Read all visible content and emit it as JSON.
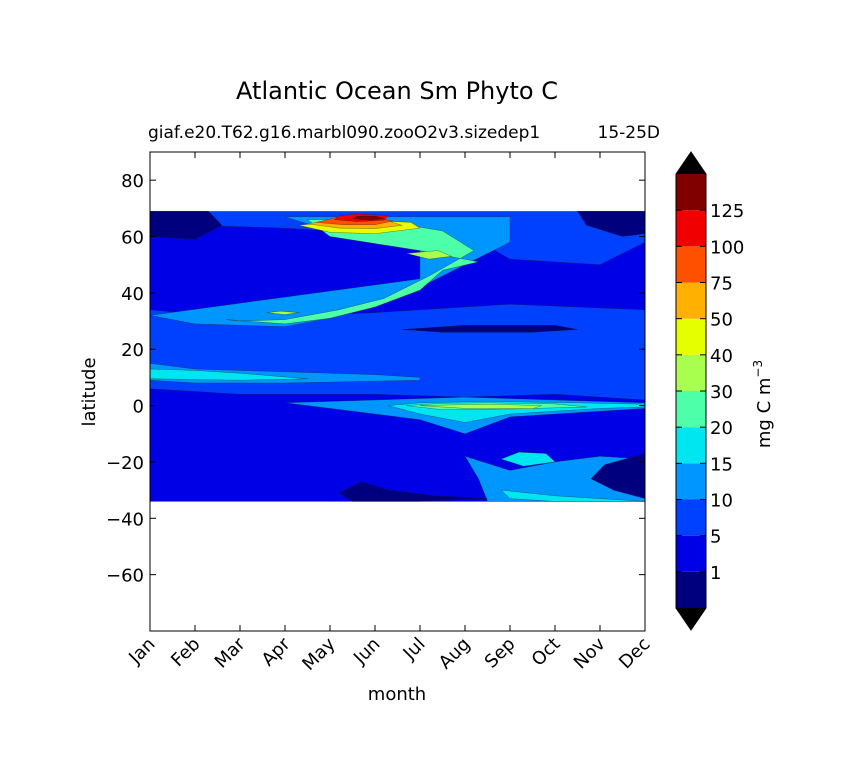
{
  "chart_data": {
    "type": "heatmap",
    "title": "Atlantic Ocean Sm Phyto C",
    "subtitle_left": "giaf.e20.T62.g16.marbl090.zooO2v3.sizedep1",
    "subtitle_right": "15-25D",
    "xlabel": "month",
    "ylabel": "latitude",
    "x_categories": [
      "Jan",
      "Feb",
      "Mar",
      "Apr",
      "May",
      "Jun",
      "Jul",
      "Aug",
      "Sep",
      "Oct",
      "Nov",
      "Dec"
    ],
    "ylim": [
      -80,
      90
    ],
    "yticks": [
      80,
      60,
      40,
      20,
      0,
      -20,
      -40,
      -60
    ],
    "ytick_labels": [
      "80",
      "60",
      "40",
      "20",
      "0",
      "−20",
      "−40",
      "−60"
    ],
    "data_lat_range": [
      -34,
      69
    ],
    "colorbar": {
      "label": "mg C m",
      "label_superscript": "−3",
      "levels": [
        0,
        1,
        5,
        10,
        15,
        20,
        30,
        40,
        50,
        75,
        100,
        125,
        150
      ],
      "tick_labels": [
        "1",
        "5",
        "10",
        "15",
        "20",
        "30",
        "40",
        "50",
        "75",
        "100",
        "125"
      ],
      "colors": [
        "#00007f",
        "#0000e6",
        "#0040ff",
        "#0096ff",
        "#00e6f0",
        "#4dffa8",
        "#a8ff4d",
        "#e6ff00",
        "#ffb000",
        "#ff5000",
        "#f00000",
        "#800000"
      ],
      "extend": "both",
      "under_color": "#000000",
      "over_color": "#000000"
    },
    "regions": [
      {
        "level": 1,
        "polygon": [
          [
            0,
            34
          ],
          [
            0,
            61
          ],
          [
            1,
            64
          ],
          [
            3,
            63
          ],
          [
            5,
            61
          ],
          [
            7,
            61
          ],
          [
            8,
            52
          ],
          [
            10,
            50
          ],
          [
            11,
            58
          ],
          [
            11,
            34
          ],
          [
            8,
            36
          ],
          [
            5,
            33
          ],
          [
            2,
            31
          ]
        ]
      },
      {
        "level": 1,
        "polygon": [
          [
            0,
            6
          ],
          [
            2,
            4
          ],
          [
            5,
            4
          ],
          [
            7,
            3
          ],
          [
            9,
            4
          ],
          [
            11,
            2
          ],
          [
            11,
            -34
          ],
          [
            0,
            -34
          ]
        ]
      },
      {
        "level": 3,
        "polygon": [
          [
            0,
            32
          ],
          [
            1,
            29
          ],
          [
            3,
            28
          ],
          [
            4,
            31
          ],
          [
            5,
            36
          ],
          [
            6,
            42
          ],
          [
            7,
            50
          ],
          [
            8,
            58
          ],
          [
            8,
            67
          ],
          [
            3,
            67
          ],
          [
            4,
            62
          ],
          [
            6,
            55
          ],
          [
            6,
            45
          ]
        ]
      },
      {
        "level": 3,
        "polygon": [
          [
            0,
            15
          ],
          [
            1,
            13
          ],
          [
            3,
            12
          ],
          [
            5,
            11
          ],
          [
            6,
            10
          ],
          [
            6,
            9
          ],
          [
            3,
            8
          ],
          [
            1,
            8
          ],
          [
            0,
            9
          ]
        ]
      },
      {
        "level": 3,
        "polygon": [
          [
            3,
            1
          ],
          [
            4.5,
            -2
          ],
          [
            6,
            -5
          ],
          [
            7,
            -10
          ],
          [
            8,
            -4
          ],
          [
            10,
            -2
          ],
          [
            11,
            -1
          ],
          [
            11,
            1
          ],
          [
            9,
            2
          ],
          [
            7,
            3
          ],
          [
            5,
            2
          ]
        ]
      },
      {
        "level": 3,
        "polygon": [
          [
            7,
            -18
          ],
          [
            8,
            -23
          ],
          [
            9,
            -20
          ],
          [
            10,
            -18
          ],
          [
            11,
            -19
          ],
          [
            11,
            -34
          ],
          [
            7.5,
            -34
          ],
          [
            7.3,
            -26
          ]
        ]
      },
      {
        "level": 4,
        "polygon": [
          [
            0,
            13
          ],
          [
            1,
            12.5
          ],
          [
            2,
            11.5
          ],
          [
            3.5,
            9.5
          ],
          [
            2,
            9
          ],
          [
            0,
            9.5
          ]
        ]
      },
      {
        "level": 4,
        "polygon": [
          [
            5.3,
            0
          ],
          [
            6,
            -3
          ],
          [
            7,
            -6
          ],
          [
            8,
            -3
          ],
          [
            10,
            -1
          ],
          [
            11,
            -0.5
          ],
          [
            11,
            0.5
          ],
          [
            9.5,
            1
          ],
          [
            7.5,
            1.5
          ],
          [
            6,
            1
          ]
        ]
      },
      {
        "level": 4,
        "polygon": [
          [
            7.8,
            -19
          ],
          [
            8.3,
            -21.5
          ],
          [
            9,
            -20
          ],
          [
            8.8,
            -17
          ],
          [
            8.2,
            -16.5
          ]
        ]
      },
      {
        "level": 4,
        "polygon": [
          [
            7.8,
            -30
          ],
          [
            9,
            -32
          ],
          [
            10,
            -33
          ],
          [
            11,
            -34
          ],
          [
            9,
            -34
          ],
          [
            8,
            -33
          ]
        ]
      },
      {
        "level": 5,
        "polygon": [
          [
            1.7,
            30.5
          ],
          [
            3,
            29
          ],
          [
            4,
            31
          ],
          [
            5,
            35
          ],
          [
            6,
            41
          ],
          [
            6.5,
            48
          ],
          [
            7.3,
            51
          ],
          [
            6,
            55
          ],
          [
            4,
            60
          ],
          [
            3.5,
            66
          ],
          [
            5,
            66
          ],
          [
            6.5,
            62
          ],
          [
            7.2,
            55
          ],
          [
            6.2,
            46
          ],
          [
            5.2,
            38
          ],
          [
            4.2,
            34
          ],
          [
            3,
            30.5
          ],
          [
            2,
            30
          ]
        ]
      },
      {
        "level": 5,
        "polygon": [
          [
            5.7,
            0
          ],
          [
            6.5,
            -1.5
          ],
          [
            8,
            -1.2
          ],
          [
            9.7,
            -0.5
          ],
          [
            9,
            0.6
          ],
          [
            7.5,
            1
          ],
          [
            6.5,
            0.8
          ]
        ]
      },
      {
        "level": 6,
        "polygon": [
          [
            5.7,
            54
          ],
          [
            6.2,
            52
          ],
          [
            6.7,
            53
          ],
          [
            6.4,
            55
          ]
        ]
      },
      {
        "level": 6,
        "polygon": [
          [
            2.6,
            33
          ],
          [
            3,
            32.3
          ],
          [
            3.3,
            33
          ],
          [
            2.9,
            33.5
          ]
        ]
      },
      {
        "level": 6,
        "polygon": [
          [
            6,
            0
          ],
          [
            7,
            -1
          ],
          [
            8.5,
            -1.1
          ],
          [
            8.7,
            0
          ],
          [
            7.5,
            0.5
          ]
        ]
      },
      {
        "level": 7,
        "polygon": [
          [
            3.3,
            64
          ],
          [
            4,
            61.5
          ],
          [
            5,
            61
          ],
          [
            6,
            63
          ],
          [
            5.8,
            65
          ],
          [
            4.5,
            66
          ]
        ]
      },
      {
        "level": 8,
        "polygon": [
          [
            3.5,
            64.5
          ],
          [
            4.2,
            63
          ],
          [
            5,
            62.8
          ],
          [
            5.6,
            64
          ],
          [
            5.2,
            66
          ],
          [
            4.3,
            66.5
          ]
        ]
      },
      {
        "level": 9,
        "polygon": [
          [
            3.7,
            65
          ],
          [
            4.3,
            64.2
          ],
          [
            5,
            64.2
          ],
          [
            5.4,
            65.5
          ],
          [
            4.8,
            67
          ],
          [
            4.2,
            67
          ]
        ]
      },
      {
        "level": 10,
        "polygon": [
          [
            4.1,
            66
          ],
          [
            4.6,
            65.3
          ],
          [
            5.2,
            65.8
          ],
          [
            5.3,
            67.5
          ],
          [
            4.6,
            68
          ],
          [
            4.2,
            67.4
          ]
        ]
      },
      {
        "level": 11,
        "polygon": [
          [
            4.5,
            66.3
          ],
          [
            4.9,
            65.8
          ],
          [
            5.2,
            66.4
          ],
          [
            5,
            67.3
          ],
          [
            4.6,
            67.2
          ]
        ]
      },
      {
        "level": 0,
        "polygon": [
          [
            0,
            69
          ],
          [
            0,
            60
          ],
          [
            1,
            59
          ],
          [
            1.6,
            64
          ],
          [
            1.3,
            69
          ]
        ]
      },
      {
        "level": 0,
        "polygon": [
          [
            9.5,
            69
          ],
          [
            9.7,
            64
          ],
          [
            10.5,
            60
          ],
          [
            11,
            61
          ],
          [
            11,
            69
          ]
        ]
      },
      {
        "level": 0,
        "polygon": [
          [
            5.6,
            27
          ],
          [
            6.5,
            26
          ],
          [
            8.5,
            26
          ],
          [
            9.5,
            27
          ],
          [
            9,
            28.5
          ],
          [
            7,
            28.5
          ]
        ]
      },
      {
        "level": 0,
        "polygon": [
          [
            4.7,
            -27
          ],
          [
            5.3,
            -30
          ],
          [
            6.3,
            -32
          ],
          [
            7.5,
            -33
          ],
          [
            6,
            -34
          ],
          [
            4.5,
            -34
          ],
          [
            4.2,
            -31
          ]
        ]
      },
      {
        "level": 0,
        "polygon": [
          [
            10.1,
            -21
          ],
          [
            11,
            -17
          ],
          [
            11,
            -33
          ],
          [
            10.3,
            -30
          ],
          [
            9.8,
            -26
          ]
        ]
      }
    ],
    "grid": false,
    "legend": "colorbar-right"
  }
}
